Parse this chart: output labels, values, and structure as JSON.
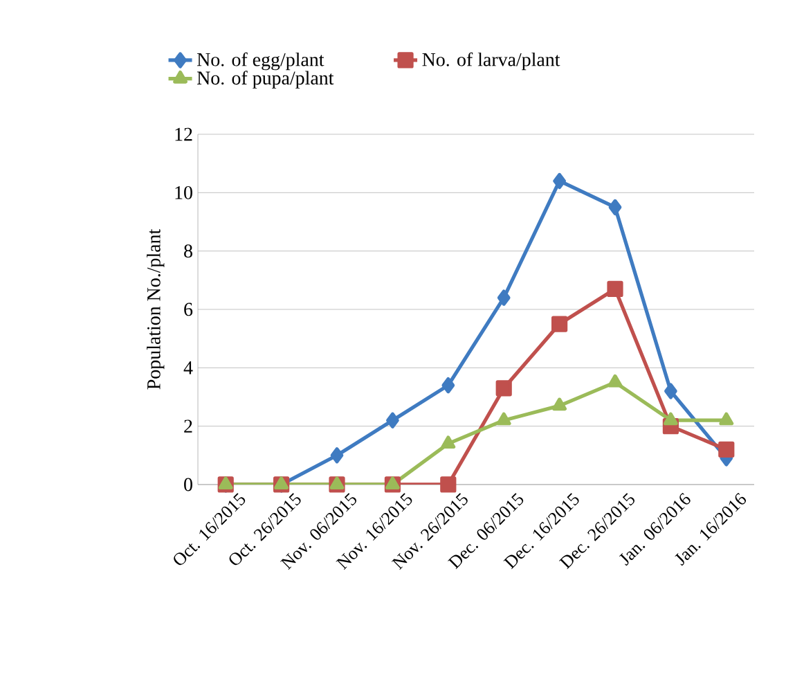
{
  "chart_data": {
    "type": "line",
    "ylabel": "Population No./plant",
    "categories": [
      "Oct. 16/2015",
      "Oct. 26/2015",
      "Nov. 06/2015",
      "Nov. 16/2015",
      "Nov. 26/2015",
      "Dec. 06/2015",
      "Dec. 16/2015",
      "Dec. 26/2015",
      "Jan. 06/2016",
      "Jan. 16/2016"
    ],
    "series": [
      {
        "name": "No. of egg/plant",
        "color": "#3f7bc1",
        "marker": "diamond",
        "values": [
          0,
          0,
          1.0,
          2.2,
          3.4,
          6.4,
          10.4,
          9.5,
          3.2,
          0.9
        ]
      },
      {
        "name": "No. of larva/plant",
        "color": "#c0504d",
        "marker": "square",
        "values": [
          0,
          0,
          0,
          0,
          0,
          3.3,
          5.5,
          6.7,
          2.0,
          1.2
        ]
      },
      {
        "name": "No. of pupa/plant",
        "color": "#9bbb59",
        "marker": "triangle",
        "values": [
          0,
          0,
          0,
          0,
          1.4,
          2.2,
          2.7,
          3.5,
          2.2,
          2.2
        ]
      }
    ],
    "ylim": [
      0,
      12
    ],
    "yticks": [
      0,
      2,
      4,
      6,
      8,
      10,
      12
    ],
    "grid": "y",
    "legend": "top",
    "line_style": "solid"
  }
}
